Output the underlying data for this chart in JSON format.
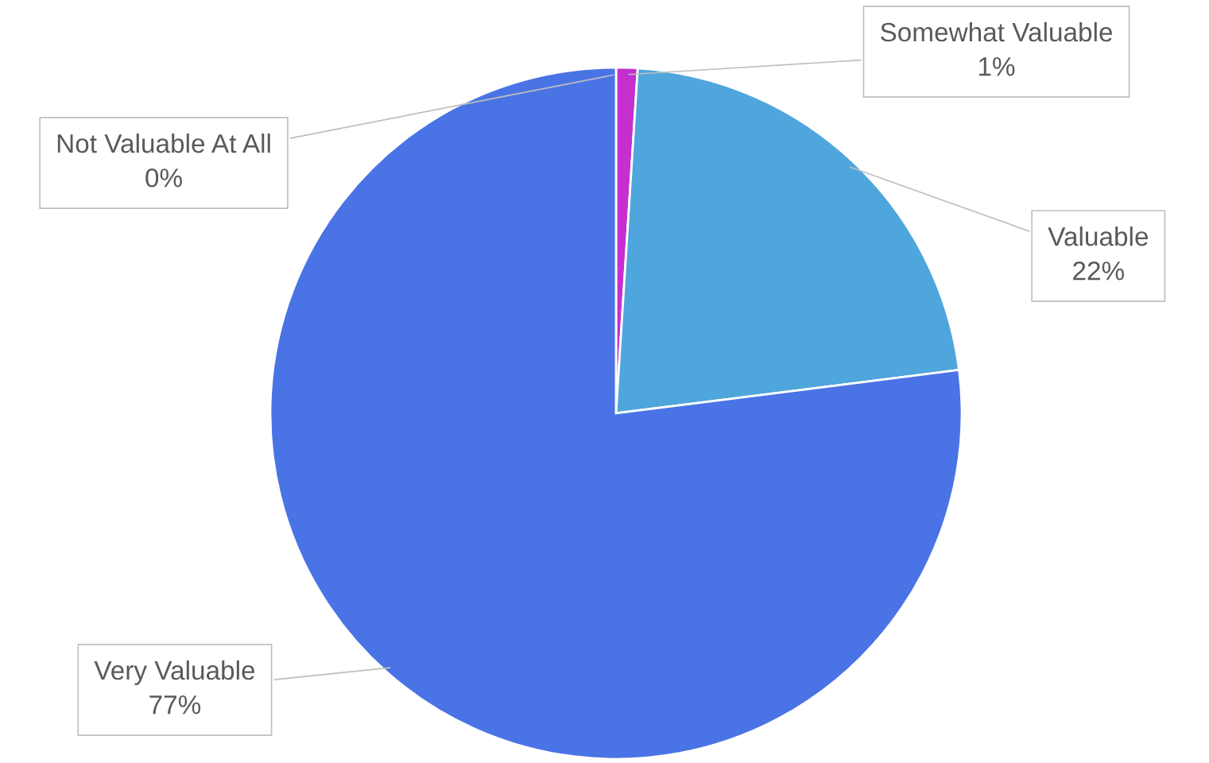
{
  "chart_data": {
    "type": "pie",
    "categories": [
      "Not Valuable At All",
      "Somewhat Valuable",
      "Valuable",
      "Very Valuable"
    ],
    "values": [
      0,
      1,
      22,
      77
    ],
    "colors": [
      "#e0338f",
      "#c42fce",
      "#4fa6dc",
      "#4a74e5"
    ],
    "value_labels": [
      "0%",
      "1%",
      "22%",
      "77%"
    ],
    "legend": false
  }
}
